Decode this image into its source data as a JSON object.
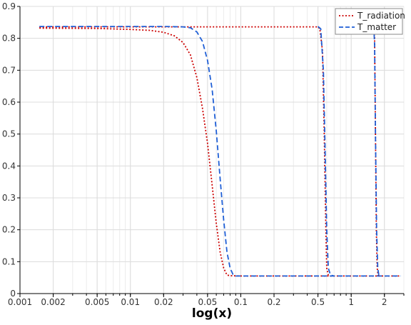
{
  "chart_data": {
    "type": "line",
    "title": "",
    "xlabel": "log(x)",
    "ylabel": "",
    "xscale": "log",
    "xlim": [
      0.001,
      3.0
    ],
    "ylim": [
      0,
      0.9
    ],
    "grid": true,
    "legend_position": "top-right",
    "x_ticks": [
      {
        "value": 0.001,
        "label": "0.001"
      },
      {
        "value": 0.002,
        "label": "0.002"
      },
      {
        "value": 0.005,
        "label": "0.005"
      },
      {
        "value": 0.01,
        "label": "0.01"
      },
      {
        "value": 0.02,
        "label": "0.02"
      },
      {
        "value": 0.05,
        "label": "0.05"
      },
      {
        "value": 0.1,
        "label": "0.1"
      },
      {
        "value": 0.2,
        "label": "0.2"
      },
      {
        "value": 0.5,
        "label": "0.5"
      },
      {
        "value": 1,
        "label": "1"
      },
      {
        "value": 2,
        "label": "2"
      }
    ],
    "y_ticks": [
      {
        "value": 0,
        "label": "0"
      },
      {
        "value": 0.1,
        "label": "0.1"
      },
      {
        "value": 0.2,
        "label": "0.2"
      },
      {
        "value": 0.3,
        "label": "0.3"
      },
      {
        "value": 0.4,
        "label": "0.4"
      },
      {
        "value": 0.5,
        "label": "0.5"
      },
      {
        "value": 0.6,
        "label": "0.6"
      },
      {
        "value": 0.7,
        "label": "0.7"
      },
      {
        "value": 0.8,
        "label": "0.8"
      },
      {
        "value": 0.9,
        "label": "0.9"
      }
    ],
    "series": [
      {
        "name": "T_radiation",
        "color": "#cc0000",
        "dash": "dotted",
        "segments": [
          [
            [
              0.0015,
              0.832
            ],
            [
              0.005,
              0.831
            ],
            [
              0.01,
              0.828
            ],
            [
              0.015,
              0.825
            ],
            [
              0.02,
              0.819
            ],
            [
              0.025,
              0.808
            ],
            [
              0.03,
              0.787
            ],
            [
              0.035,
              0.748
            ],
            [
              0.04,
              0.677
            ],
            [
              0.045,
              0.58
            ],
            [
              0.05,
              0.47
            ],
            [
              0.055,
              0.34
            ],
            [
              0.06,
              0.22
            ],
            [
              0.065,
              0.13
            ],
            [
              0.07,
              0.08
            ],
            [
              0.075,
              0.058
            ],
            [
              0.08,
              0.056
            ],
            [
              0.1,
              0.055
            ],
            [
              0.5,
              0.055
            ],
            [
              2.8,
              0.055
            ]
          ],
          [
            [
              0.0015,
              0.836
            ],
            [
              0.5,
              0.836
            ],
            [
              0.52,
              0.83
            ],
            [
              0.55,
              0.76
            ],
            [
              0.57,
              0.5
            ],
            [
              0.59,
              0.2
            ],
            [
              0.6,
              0.08
            ],
            [
              0.62,
              0.058
            ],
            [
              0.65,
              0.055
            ]
          ],
          [
            [
              1.5,
              0.835
            ],
            [
              1.6,
              0.834
            ],
            [
              1.63,
              0.8
            ],
            [
              1.66,
              0.5
            ],
            [
              1.69,
              0.2
            ],
            [
              1.72,
              0.08
            ],
            [
              1.75,
              0.058
            ],
            [
              1.8,
              0.055
            ]
          ]
        ]
      },
      {
        "name": "T_matter",
        "color": "#1f5fd6",
        "dash": "dashed",
        "segments": [
          [
            [
              0.0015,
              0.837
            ],
            [
              0.02,
              0.837
            ],
            [
              0.03,
              0.836
            ],
            [
              0.035,
              0.833
            ],
            [
              0.04,
              0.82
            ],
            [
              0.045,
              0.79
            ],
            [
              0.05,
              0.73
            ],
            [
              0.055,
              0.64
            ],
            [
              0.06,
              0.51
            ],
            [
              0.065,
              0.36
            ],
            [
              0.07,
              0.23
            ],
            [
              0.075,
              0.13
            ],
            [
              0.08,
              0.08
            ],
            [
              0.085,
              0.06
            ],
            [
              0.09,
              0.055
            ],
            [
              0.1,
              0.055
            ],
            [
              2.8,
              0.055
            ]
          ],
          [
            [
              0.5,
              0.837
            ],
            [
              0.53,
              0.83
            ],
            [
              0.56,
              0.7
            ],
            [
              0.58,
              0.45
            ],
            [
              0.6,
              0.2
            ],
            [
              0.62,
              0.08
            ],
            [
              0.65,
              0.058
            ],
            [
              0.7,
              0.055
            ]
          ],
          [
            [
              1.6,
              0.837
            ],
            [
              1.63,
              0.78
            ],
            [
              1.66,
              0.5
            ],
            [
              1.7,
              0.2
            ],
            [
              1.74,
              0.08
            ],
            [
              1.78,
              0.058
            ],
            [
              1.85,
              0.055
            ]
          ]
        ]
      }
    ]
  }
}
